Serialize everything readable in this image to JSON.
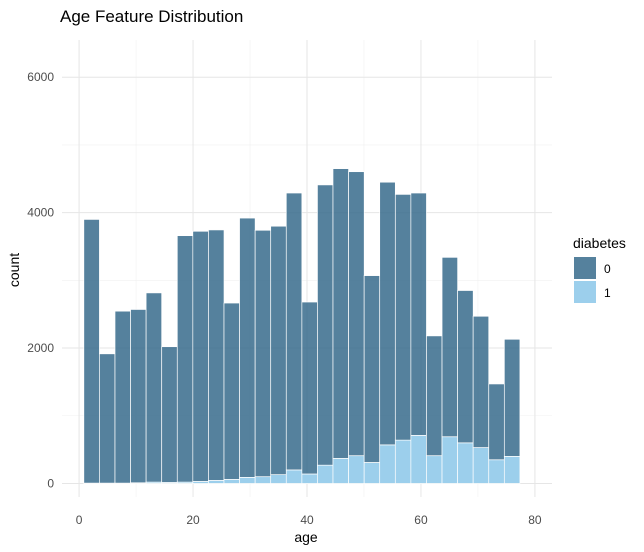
{
  "chart_data": {
    "type": "bar",
    "stacked": true,
    "title": "Age Feature Distribution",
    "xlabel": "age",
    "ylabel": "count",
    "xlim": [
      -3,
      83
    ],
    "ylim": [
      -200,
      6550
    ],
    "x_ticks": [
      0,
      20,
      40,
      60,
      80
    ],
    "y_ticks": [
      0,
      2000,
      4000,
      6000
    ],
    "bin_width": 2.74,
    "bin_centers": [
      2.2,
      4.93,
      7.67,
      10.4,
      13.13,
      15.87,
      18.6,
      21.33,
      24.07,
      26.8,
      29.53,
      32.27,
      35.0,
      37.73,
      40.47,
      43.2,
      45.93,
      48.67,
      51.4,
      54.13,
      56.87,
      59.6,
      62.33,
      65.07,
      67.8,
      70.53,
      73.27,
      76.0,
      78.73
    ],
    "legend": {
      "title": "diabetes",
      "position": "right",
      "entries": [
        "0",
        "1"
      ]
    },
    "grid": true,
    "series": [
      {
        "name": "0",
        "color": "#2f6587",
        "values": [
          3895,
          1910,
          2540,
          2560,
          2795,
          2005,
          3640,
          3695,
          3700,
          2605,
          3830,
          3640,
          3670,
          4090,
          2540,
          4140,
          4280,
          4195,
          2760,
          3880,
          3630,
          3580,
          1770,
          2650,
          2250,
          1940,
          1120,
          1730,
          0
        ]
      },
      {
        "name": "1",
        "color": "#9ccfec",
        "values": [
          5,
          5,
          5,
          10,
          20,
          15,
          20,
          30,
          45,
          60,
          90,
          100,
          130,
          200,
          140,
          270,
          370,
          410,
          310,
          570,
          640,
          710,
          410,
          690,
          600,
          530,
          350,
          400,
          0
        ]
      }
    ]
  }
}
